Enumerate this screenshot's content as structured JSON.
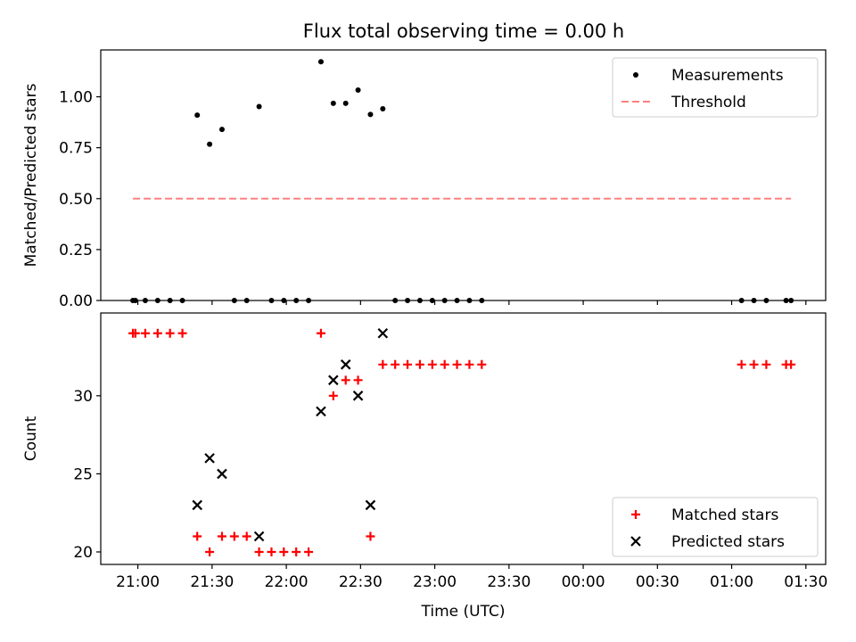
{
  "figure_title": "Flux total observing time = 0.00 h",
  "chart_data": [
    {
      "type": "scatter",
      "title": "Flux total observing time = 0.00 h",
      "xlabel": "",
      "ylabel": "Matched/Predicted stars",
      "xlim": [
        "20:45",
        "25:38"
      ],
      "ylim": [
        0.0,
        1.23
      ],
      "yticks": [
        0.0,
        0.25,
        0.5,
        0.75,
        1.0
      ],
      "ytick_labels": [
        "0.00",
        "0.25",
        "0.50",
        "0.75",
        "1.00"
      ],
      "xticks": [
        "21:00",
        "21:30",
        "22:00",
        "22:30",
        "23:00",
        "23:30",
        "24:00",
        "24:30",
        "25:00",
        "25:30"
      ],
      "legend_position": "upper right",
      "series": [
        {
          "name": "Measurements",
          "marker": "dot",
          "color": "#000000",
          "points": [
            [
              "20:58",
              0.0
            ],
            [
              "20:59",
              0.0
            ],
            [
              "21:03",
              0.0
            ],
            [
              "21:08",
              0.0
            ],
            [
              "21:13",
              0.0
            ],
            [
              "21:18",
              0.0
            ],
            [
              "21:24",
              0.91
            ],
            [
              "21:29",
              0.767
            ],
            [
              "21:34",
              0.84
            ],
            [
              "21:39",
              0.0
            ],
            [
              "21:44",
              0.0
            ],
            [
              "21:49",
              0.952
            ],
            [
              "21:54",
              0.0
            ],
            [
              "21:59",
              0.0
            ],
            [
              "22:04",
              0.0
            ],
            [
              "22:09",
              0.0
            ],
            [
              "22:14",
              1.172
            ],
            [
              "22:19",
              0.968
            ],
            [
              "22:24",
              0.968
            ],
            [
              "22:29",
              1.033
            ],
            [
              "22:34",
              0.913
            ],
            [
              "22:39",
              0.941
            ],
            [
              "22:44",
              0.0
            ],
            [
              "22:49",
              0.0
            ],
            [
              "22:54",
              0.0
            ],
            [
              "22:59",
              0.0
            ],
            [
              "23:04",
              0.0
            ],
            [
              "23:09",
              0.0
            ],
            [
              "23:14",
              0.0
            ],
            [
              "23:19",
              0.0
            ],
            [
              "25:04",
              0.0
            ],
            [
              "25:09",
              0.0
            ],
            [
              "25:14",
              0.0
            ],
            [
              "25:22",
              0.0
            ],
            [
              "25:24",
              0.0
            ]
          ]
        },
        {
          "name": "Threshold",
          "marker": "dashed-line",
          "color": "#ff8080",
          "points": [
            [
              "20:58",
              0.5
            ],
            [
              "25:24",
              0.5
            ]
          ]
        }
      ]
    },
    {
      "type": "scatter",
      "title": "",
      "xlabel": "Time (UTC)",
      "ylabel": "Count",
      "xlim": [
        "20:45",
        "25:38"
      ],
      "ylim": [
        19.2,
        35.3
      ],
      "yticks": [
        20,
        25,
        30
      ],
      "ytick_labels": [
        "20",
        "25",
        "30"
      ],
      "xticks": [
        "21:00",
        "21:30",
        "22:00",
        "22:30",
        "23:00",
        "23:30",
        "24:00",
        "24:30",
        "25:00",
        "25:30"
      ],
      "xtick_labels": [
        "21:00",
        "21:30",
        "22:00",
        "22:30",
        "23:00",
        "23:30",
        "00:00",
        "00:30",
        "01:00",
        "01:30"
      ],
      "legend_position": "lower right",
      "series": [
        {
          "name": "Matched stars",
          "marker": "plus",
          "color": "#ff0000",
          "points": [
            [
              "20:58",
              34
            ],
            [
              "20:59",
              34
            ],
            [
              "21:03",
              34
            ],
            [
              "21:08",
              34
            ],
            [
              "21:13",
              34
            ],
            [
              "21:18",
              34
            ],
            [
              "21:24",
              21
            ],
            [
              "21:29",
              20
            ],
            [
              "21:34",
              21
            ],
            [
              "21:39",
              21
            ],
            [
              "21:44",
              21
            ],
            [
              "21:49",
              20
            ],
            [
              "21:54",
              20
            ],
            [
              "21:59",
              20
            ],
            [
              "22:04",
              20
            ],
            [
              "22:09",
              20
            ],
            [
              "22:14",
              34
            ],
            [
              "22:19",
              30
            ],
            [
              "22:24",
              31
            ],
            [
              "22:29",
              31
            ],
            [
              "22:34",
              21
            ],
            [
              "22:39",
              32
            ],
            [
              "22:44",
              32
            ],
            [
              "22:49",
              32
            ],
            [
              "22:54",
              32
            ],
            [
              "22:59",
              32
            ],
            [
              "23:04",
              32
            ],
            [
              "23:09",
              32
            ],
            [
              "23:14",
              32
            ],
            [
              "23:19",
              32
            ],
            [
              "25:04",
              32
            ],
            [
              "25:09",
              32
            ],
            [
              "25:14",
              32
            ],
            [
              "25:22",
              32
            ],
            [
              "25:24",
              32
            ]
          ]
        },
        {
          "name": "Predicted stars",
          "marker": "x",
          "color": "#000000",
          "points": [
            [
              "21:24",
              23
            ],
            [
              "21:29",
              26
            ],
            [
              "21:34",
              25
            ],
            [
              "21:49",
              21
            ],
            [
              "22:14",
              29
            ],
            [
              "22:19",
              31
            ],
            [
              "22:24",
              32
            ],
            [
              "22:29",
              30
            ],
            [
              "22:34",
              23
            ],
            [
              "22:39",
              34
            ]
          ]
        }
      ]
    }
  ]
}
